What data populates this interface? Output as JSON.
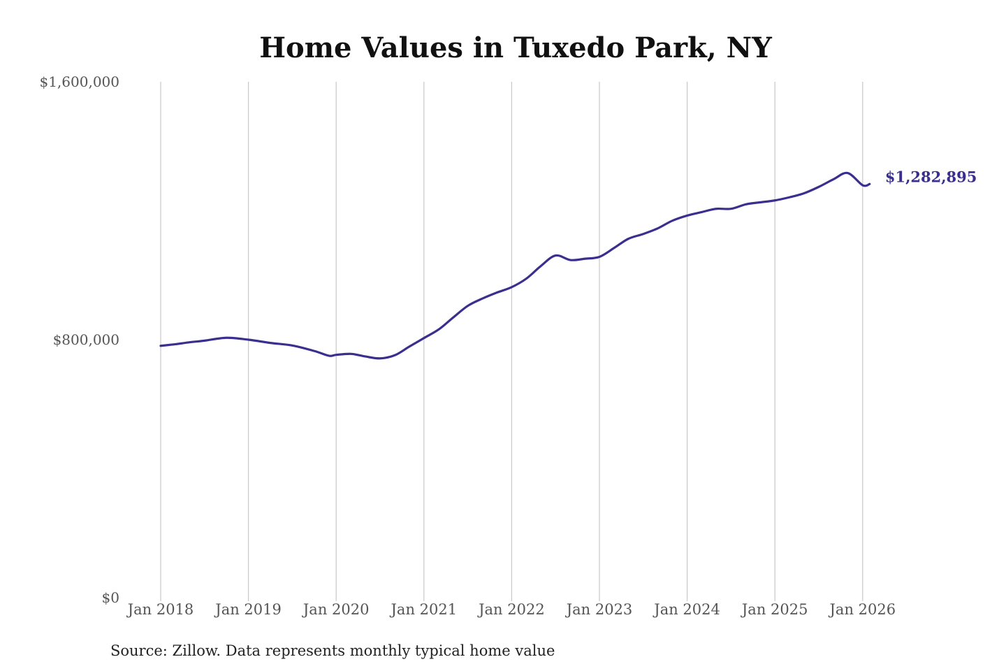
{
  "chart_data": {
    "type": "line",
    "title": "Home Values in Tuxedo Park, NY",
    "xlabel": "",
    "ylabel": "",
    "ylim": [
      0,
      1600000
    ],
    "yticks": [
      {
        "value": 0,
        "label": "$0"
      },
      {
        "value": 800000,
        "label": "$800,000"
      },
      {
        "value": 1600000,
        "label": "$1,600,000"
      }
    ],
    "xticks": [
      {
        "value": 2018.0,
        "label": "Jan 2018"
      },
      {
        "value": 2019.0,
        "label": "Jan 2019"
      },
      {
        "value": 2020.0,
        "label": "Jan 2020"
      },
      {
        "value": 2021.0,
        "label": "Jan 2021"
      },
      {
        "value": 2022.0,
        "label": "Jan 2022"
      },
      {
        "value": 2023.0,
        "label": "Jan 2023"
      },
      {
        "value": 2024.0,
        "label": "Jan 2024"
      },
      {
        "value": 2025.0,
        "label": "Jan 2025"
      },
      {
        "value": 2026.0,
        "label": "Jan 2026"
      }
    ],
    "xlim": [
      2018.0,
      2026.1
    ],
    "grid": "vertical",
    "legend": "none",
    "color": "#3a2f8f",
    "series": [
      {
        "x": [
          2018.0,
          2018.17,
          2018.33,
          2018.5,
          2018.75,
          2019.0,
          2019.25,
          2019.5,
          2019.75,
          2019.92,
          2020.0,
          2020.17,
          2020.33,
          2020.5,
          2020.67,
          2020.83,
          2021.0,
          2021.17,
          2021.33,
          2021.5,
          2021.67,
          2021.83,
          2022.0,
          2022.17,
          2022.33,
          2022.5,
          2022.67,
          2022.83,
          2023.0,
          2023.17,
          2023.33,
          2023.5,
          2023.67,
          2023.83,
          2024.0,
          2024.17,
          2024.33,
          2024.5,
          2024.67,
          2024.83,
          2025.0,
          2025.17,
          2025.33,
          2025.5,
          2025.67,
          2025.83,
          2026.0,
          2026.08
        ],
        "values": [
          781000,
          786000,
          792000,
          797000,
          806000,
          800000,
          790000,
          782000,
          765000,
          750000,
          753000,
          756000,
          748000,
          742000,
          752000,
          778000,
          805000,
          832000,
          868000,
          905000,
          928000,
          946000,
          963000,
          990000,
          1028000,
          1061000,
          1047000,
          1051000,
          1057000,
          1085000,
          1113000,
          1128000,
          1146000,
          1169000,
          1185000,
          1196000,
          1206000,
          1206000,
          1220000,
          1226000,
          1232000,
          1242000,
          1254000,
          1274000,
          1298000,
          1317000,
          1279000,
          1282895
        ]
      }
    ],
    "end_label": "$1,282,895"
  },
  "source_note": "Source: Zillow. Data represents monthly typical home value"
}
